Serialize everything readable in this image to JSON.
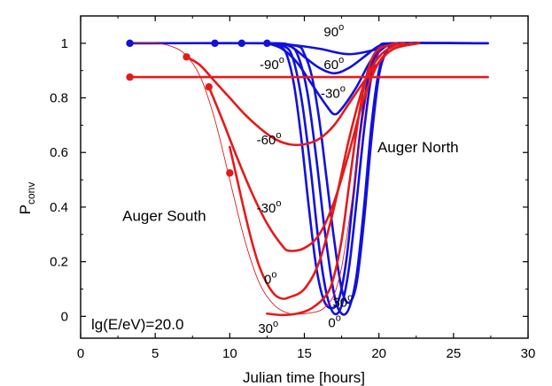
{
  "chart_data": {
    "type": "line",
    "xlabel": "Julian time [hours]",
    "ylabel_main": "P",
    "ylabel_sub": "conv",
    "xlim": [
      0,
      30
    ],
    "ylim": [
      -0.08,
      1.1
    ],
    "xticks": [
      0,
      5,
      10,
      15,
      20,
      25,
      30
    ],
    "xtick_labels": [
      "0",
      "5",
      "10",
      "15",
      "20",
      "25",
      "30"
    ],
    "yticks": [
      0,
      0.2,
      0.4,
      0.6,
      0.8,
      1
    ],
    "ytick_labels": [
      "0",
      "0.2",
      "0.4",
      "0.6",
      "0.8",
      "1"
    ],
    "grid": false,
    "colors": {
      "blue": "#1111dd",
      "red": "#e31b1b"
    },
    "series": [
      {
        "color": "blue",
        "x": [
          3.3,
          12.5,
          14,
          16,
          18,
          20,
          21,
          27.3
        ],
        "y": [
          1,
          1,
          0.995,
          0.98,
          0.96,
          0.98,
          1,
          1
        ]
      },
      {
        "color": "blue",
        "x": [
          3.3,
          12.5,
          14,
          15,
          16,
          17,
          18,
          19,
          20,
          21,
          27.3
        ],
        "y": [
          1,
          1,
          0.99,
          0.95,
          0.91,
          0.89,
          0.91,
          0.95,
          0.99,
          1,
          1
        ]
      },
      {
        "color": "blue",
        "x": [
          12.5,
          13.5,
          14.5,
          15.5,
          16.5,
          17,
          17.5,
          18.5,
          19.5,
          20.5,
          21
        ],
        "y": [
          1,
          0.98,
          0.93,
          0.85,
          0.77,
          0.74,
          0.76,
          0.84,
          0.94,
          0.99,
          1
        ]
      },
      {
        "color": "blue",
        "x": [
          12.5,
          13.3,
          13.8,
          14.3,
          14.8,
          15.3,
          15.8,
          16.3,
          16.8,
          17.3,
          17.8,
          18.3,
          18.8,
          19.3,
          19.8,
          20.3,
          21
        ],
        "y": [
          1,
          0.99,
          0.96,
          0.85,
          0.65,
          0.4,
          0.18,
          0.06,
          0.03,
          0.06,
          0.2,
          0.45,
          0.7,
          0.88,
          0.96,
          0.99,
          1
        ]
      },
      {
        "color": "blue",
        "x": [
          12.5,
          13.6,
          14.2,
          14.8,
          15.4,
          16,
          16.5,
          17,
          17.5,
          18,
          18.5,
          19,
          19.5,
          20,
          20.5,
          21
        ],
        "y": [
          1,
          0.99,
          0.95,
          0.8,
          0.55,
          0.25,
          0.08,
          0.01,
          0.04,
          0.18,
          0.42,
          0.68,
          0.88,
          0.97,
          0.99,
          1
        ]
      },
      {
        "color": "blue",
        "x": [
          12.5,
          14,
          14.6,
          15.2,
          15.8,
          16.4,
          17,
          17.5,
          18,
          18.5,
          19,
          19.5,
          20,
          20.5,
          21
        ],
        "y": [
          1,
          0.99,
          0.95,
          0.82,
          0.58,
          0.3,
          0.08,
          0.01,
          0.03,
          0.15,
          0.4,
          0.7,
          0.9,
          0.97,
          1
        ]
      },
      {
        "color": "blue",
        "x": [
          12.5,
          14.5,
          15,
          15.5,
          16,
          16.5,
          17,
          17.5,
          18,
          18.5,
          19,
          19.5,
          20,
          20.5,
          21
        ],
        "y": [
          1,
          0.99,
          0.96,
          0.88,
          0.72,
          0.5,
          0.28,
          0.1,
          0.05,
          0.12,
          0.35,
          0.65,
          0.88,
          0.97,
          1
        ]
      },
      {
        "color": "red",
        "x": [
          3.3,
          27.3
        ],
        "y": [
          0.876,
          0.876
        ]
      },
      {
        "color": "red",
        "x": [
          7.1,
          8,
          9,
          10,
          11,
          12,
          13,
          14,
          15,
          16,
          17,
          18,
          19,
          20,
          21,
          22.7
        ],
        "y": [
          0.95,
          0.92,
          0.86,
          0.8,
          0.74,
          0.69,
          0.65,
          0.63,
          0.63,
          0.65,
          0.7,
          0.78,
          0.86,
          0.93,
          0.98,
          1
        ]
      },
      {
        "color": "red",
        "x": [
          8.6,
          9.5,
          10.5,
          11.5,
          12.5,
          13.5,
          14,
          15,
          16,
          17,
          18,
          19,
          20,
          21,
          22.2
        ],
        "y": [
          0.84,
          0.72,
          0.58,
          0.45,
          0.34,
          0.26,
          0.24,
          0.25,
          0.3,
          0.42,
          0.6,
          0.8,
          0.93,
          0.98,
          1
        ]
      },
      {
        "color": "red",
        "x": [
          10,
          10.5,
          11,
          11.5,
          12,
          12.5,
          13,
          13.5,
          14,
          15,
          16,
          17,
          18,
          19,
          20,
          21,
          21.7
        ],
        "y": [
          0.62,
          0.5,
          0.38,
          0.27,
          0.18,
          0.12,
          0.08,
          0.065,
          0.07,
          0.1,
          0.2,
          0.4,
          0.65,
          0.85,
          0.95,
          0.99,
          1
        ]
      },
      {
        "color": "red",
        "x": [
          12.5,
          13.5,
          14.5,
          15.5,
          16.5,
          17,
          17.5,
          18,
          18.5,
          19,
          19.5,
          20,
          20.5,
          21.2
        ],
        "y": [
          0.01,
          0.005,
          0.01,
          0.03,
          0.08,
          0.15,
          0.28,
          0.48,
          0.68,
          0.84,
          0.94,
          0.98,
          0.99,
          1
        ]
      },
      {
        "color": "red",
        "thin": true,
        "x": [
          3.3,
          5,
          6,
          7,
          8,
          9,
          10,
          11,
          12,
          13,
          14,
          15,
          16,
          16.5,
          17,
          17.5,
          18,
          18.5,
          19,
          19.5,
          20,
          20.5,
          21
        ],
        "y": [
          1,
          1,
          0.99,
          0.96,
          0.88,
          0.72,
          0.5,
          0.28,
          0.12,
          0.04,
          0.01,
          0.01,
          0.02,
          0.04,
          0.08,
          0.18,
          0.35,
          0.55,
          0.75,
          0.9,
          0.97,
          0.99,
          1
        ]
      }
    ],
    "markers": [
      {
        "color": "blue",
        "x": 3.3,
        "y": 1
      },
      {
        "color": "blue",
        "x": 9.0,
        "y": 1
      },
      {
        "color": "blue",
        "x": 10.8,
        "y": 1
      },
      {
        "color": "blue",
        "x": 12.5,
        "y": 1
      },
      {
        "color": "red",
        "x": 3.3,
        "y": 0.876
      },
      {
        "color": "red",
        "x": 7.1,
        "y": 0.95
      },
      {
        "color": "red",
        "x": 8.6,
        "y": 0.84
      },
      {
        "color": "red",
        "x": 10.0,
        "y": 0.525
      }
    ],
    "annotations": [
      {
        "name": "anno-blue-90",
        "base": "90",
        "sup": "o",
        "x": 16.3,
        "y": 1.025
      },
      {
        "name": "anno-blue-minus90",
        "base": "-90",
        "sup": "o",
        "x": 12.0,
        "y": 0.905
      },
      {
        "name": "anno-blue-60",
        "base": "60",
        "sup": "o",
        "x": 16.3,
        "y": 0.905
      },
      {
        "name": "anno-blue-minus30",
        "base": "-30",
        "sup": "o",
        "x": 16.1,
        "y": 0.8
      },
      {
        "name": "anno-red-minus60",
        "base": "-60",
        "sup": "o",
        "x": 11.8,
        "y": 0.63
      },
      {
        "name": "anno-red-minus30",
        "base": "-30",
        "sup": "o",
        "x": 11.8,
        "y": 0.38
      },
      {
        "name": "anno-red-0",
        "base": "0",
        "sup": "o",
        "x": 12.3,
        "y": 0.12
      },
      {
        "name": "anno-red-30",
        "base": "30",
        "sup": "o",
        "x": 11.9,
        "y": -0.06
      },
      {
        "name": "anno-blue-30",
        "base": "30",
        "sup": "o",
        "x": 16.9,
        "y": 0.035
      },
      {
        "name": "anno-blue-0",
        "base": "0",
        "sup": "o",
        "x": 16.6,
        "y": -0.04
      }
    ],
    "regions": [
      {
        "name": "label-auger-north",
        "text": "Auger North",
        "x": 19.9,
        "y": 0.6
      },
      {
        "name": "label-auger-south",
        "text": "Auger South",
        "x": 2.8,
        "y": 0.35
      }
    ],
    "energy_label": "lg(E/eV)=20.0"
  }
}
